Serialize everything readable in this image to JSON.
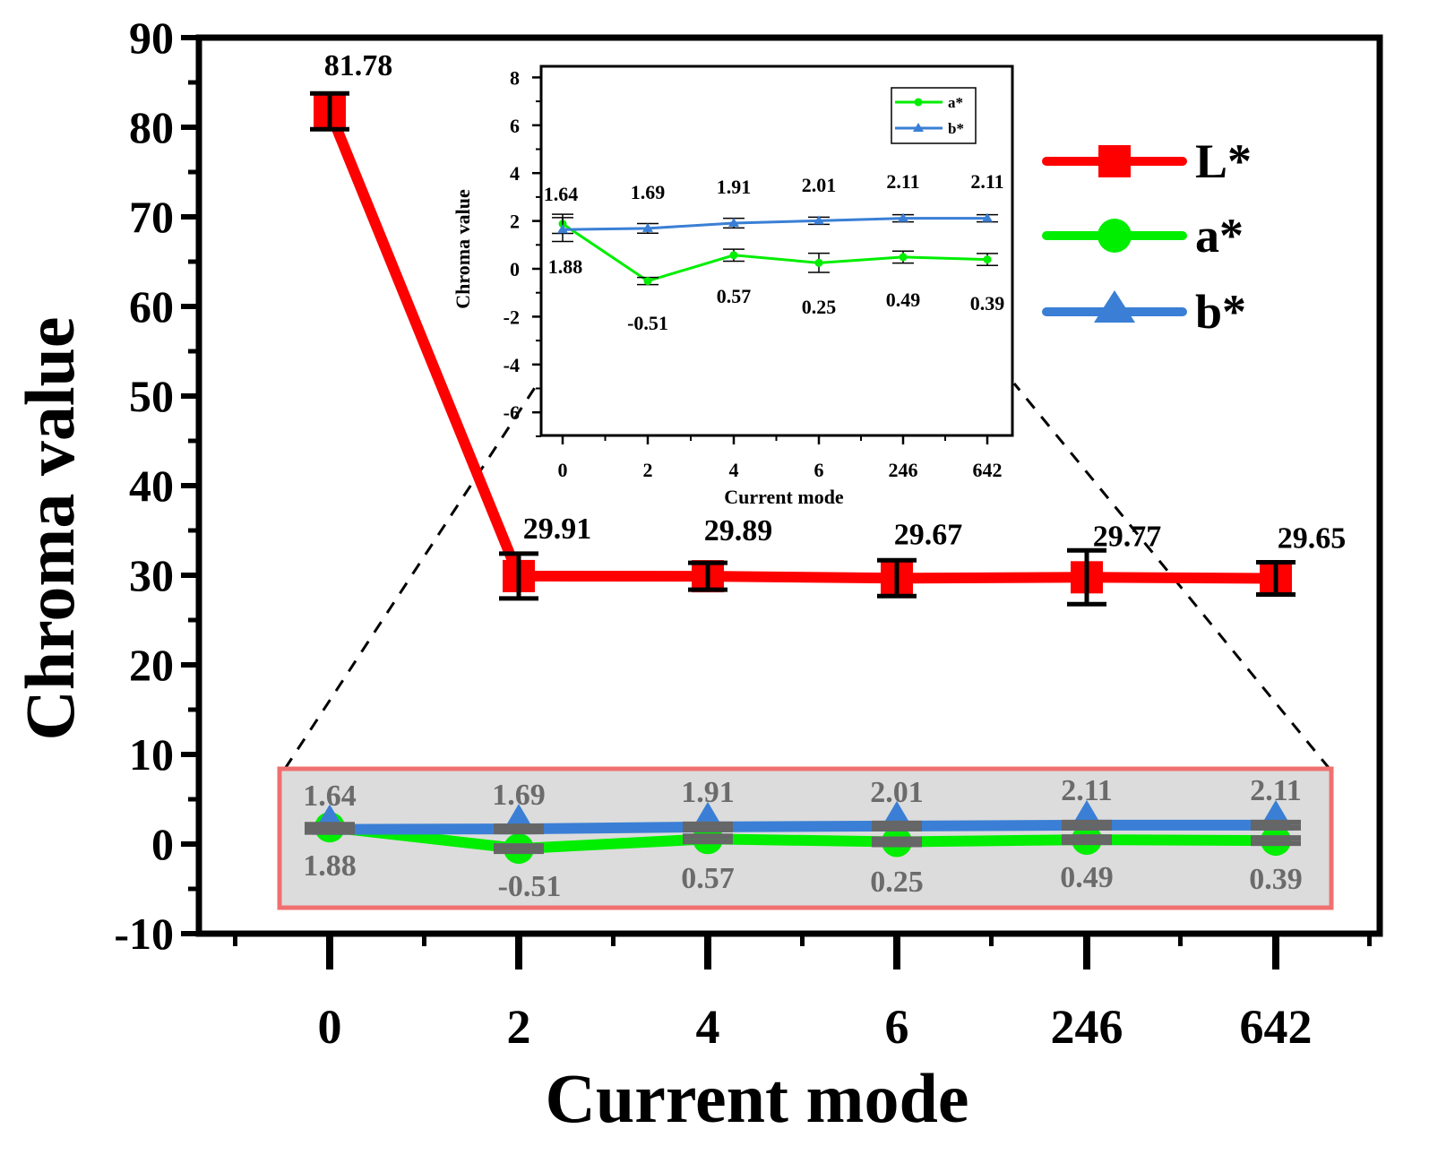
{
  "chart_data": {
    "type": "line",
    "categories": [
      "0",
      "2",
      "4",
      "6",
      "246",
      "642"
    ],
    "xlabel": "Current mode",
    "ylabel": "Chroma value",
    "ylim": [
      -10,
      90
    ],
    "yticks": [
      "-10",
      "0",
      "10",
      "20",
      "30",
      "40",
      "50",
      "60",
      "70",
      "80",
      "90"
    ],
    "series": [
      {
        "name": "L*",
        "color": "#ff0000",
        "marker": "square",
        "values": [
          81.78,
          29.91,
          29.89,
          29.67,
          29.77,
          29.65
        ],
        "errors": [
          2.0,
          2.5,
          1.5,
          2.0,
          3.0,
          1.8
        ],
        "labels": [
          "81.78",
          "29.91",
          "29.89",
          "29.67",
          "29.77",
          "29.65"
        ]
      },
      {
        "name": "a*",
        "color": "#00ee00",
        "marker": "circle",
        "values": [
          1.88,
          -0.51,
          0.57,
          0.25,
          0.49,
          0.39
        ],
        "errors": [
          0.4,
          0.15,
          0.25,
          0.4,
          0.25,
          0.25
        ],
        "labels": [
          "1.88",
          "-0.51",
          "0.57",
          "0.25",
          "0.49",
          "0.39"
        ]
      },
      {
        "name": "b*",
        "color": "#3a7fd5",
        "marker": "triangle",
        "values": [
          1.64,
          1.69,
          1.91,
          2.01,
          2.11,
          2.11
        ],
        "errors": [
          0.5,
          0.2,
          0.2,
          0.15,
          0.15,
          0.15
        ],
        "labels": [
          "1.64",
          "1.69",
          "1.91",
          "2.01",
          "2.11",
          "2.11"
        ]
      }
    ],
    "legend": [
      "L*",
      "a*",
      "b*"
    ],
    "inset": {
      "xlabel": "Current mode",
      "ylabel": "Chroma value",
      "ylim": [
        -7,
        8
      ],
      "yticks": [
        "-6",
        "-4",
        "-2",
        "0",
        "2",
        "4",
        "6",
        "8"
      ],
      "categories": [
        "0",
        "2",
        "4",
        "6",
        "246",
        "642"
      ],
      "legend": [
        "a*",
        "b*"
      ]
    }
  }
}
